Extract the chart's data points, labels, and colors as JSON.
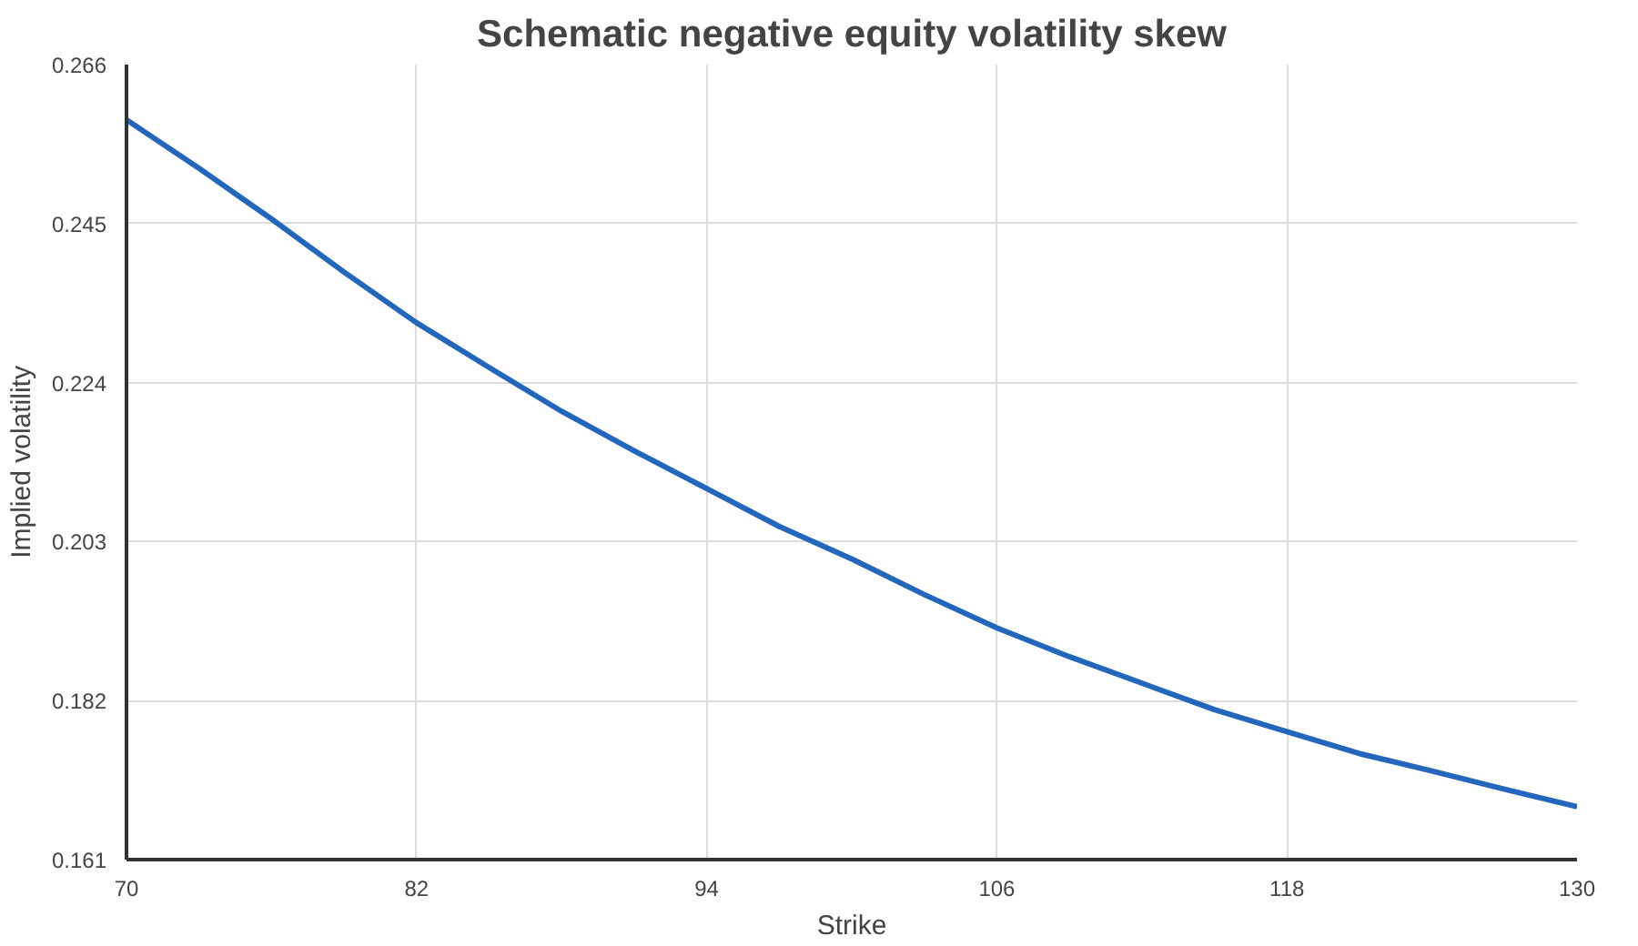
{
  "chart_data": {
    "type": "line",
    "title": "Schematic negative equity volatility skew",
    "xlabel": "Strike",
    "ylabel": "Implied volatility",
    "x": [
      70,
      73,
      76,
      79,
      82,
      85,
      88,
      91,
      94,
      97,
      100,
      103,
      106,
      109,
      112,
      115,
      118,
      121,
      124,
      127,
      130
    ],
    "series": [
      {
        "color": "#2367bd",
        "values": [
          0.2587,
          0.2523,
          0.2456,
          0.2386,
          0.2319,
          0.226,
          0.2202,
          0.215,
          0.21,
          0.205,
          0.2007,
          0.196,
          0.1916,
          0.1878,
          0.1843,
          0.1808,
          0.1779,
          0.175,
          0.1727,
          0.1703,
          0.168
        ]
      }
    ],
    "xlim": [
      70,
      130
    ],
    "xticks": [
      70,
      82,
      94,
      106,
      118,
      130
    ],
    "ylim": [
      0.161,
      0.266
    ],
    "yticks": [
      0.161,
      0.182,
      0.203,
      0.224,
      0.245,
      0.266
    ],
    "grid": true,
    "marker": "none",
    "line_style": "solid"
  }
}
